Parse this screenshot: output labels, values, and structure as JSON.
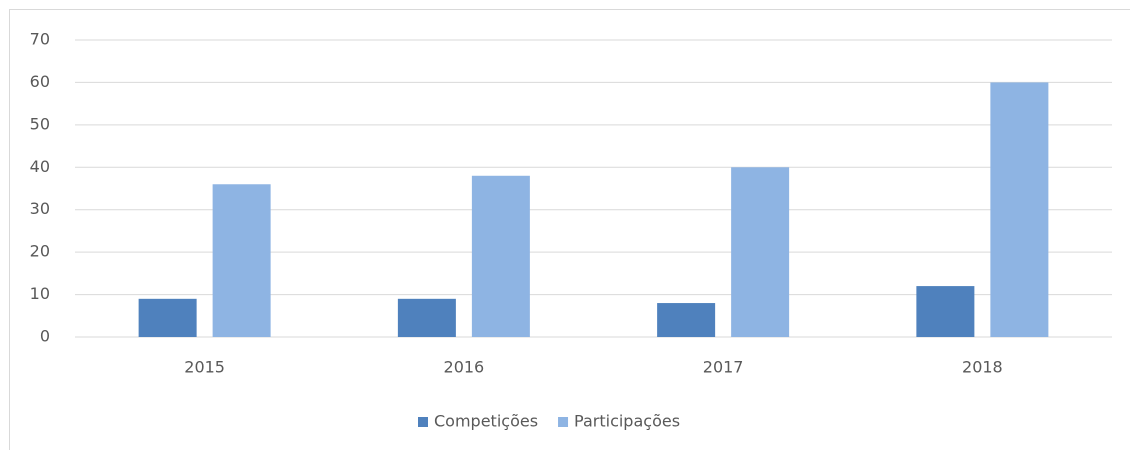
{
  "chart_data": {
    "type": "bar",
    "categories": [
      "2015",
      "2016",
      "2017",
      "2018"
    ],
    "series": [
      {
        "name": "Competições",
        "color": "#4f81bd",
        "values": [
          9,
          9,
          8,
          12
        ]
      },
      {
        "name": "Participações",
        "color": "#8eb4e3",
        "values": [
          36,
          38,
          40,
          60
        ]
      }
    ],
    "ylim": [
      0,
      70
    ],
    "yticks": [
      0,
      10,
      20,
      30,
      40,
      50,
      60,
      70
    ],
    "grid": true,
    "legend": "bottom"
  }
}
